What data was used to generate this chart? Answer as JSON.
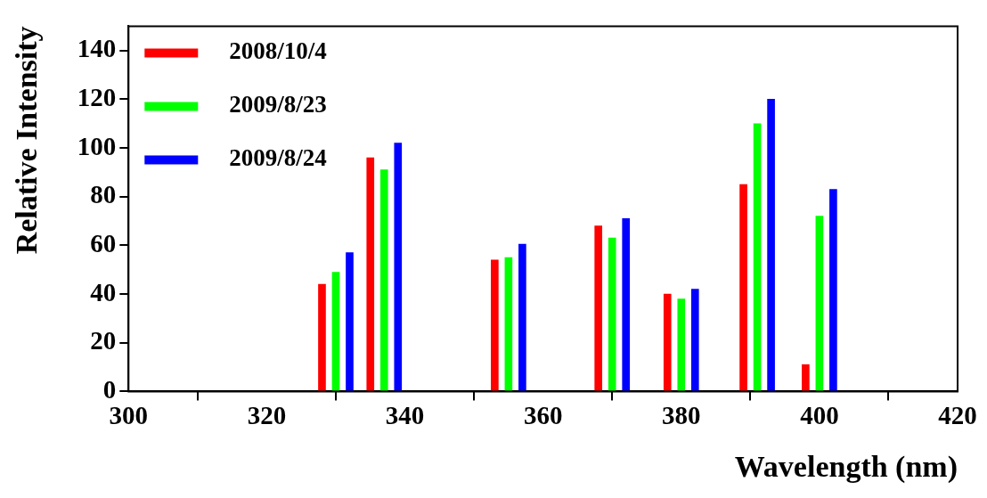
{
  "chart_data": {
    "type": "bar",
    "xlabel": "Wavelength (nm)",
    "ylabel": "Relative Intensity",
    "xlim": [
      300,
      420
    ],
    "xticks": [
      300,
      320,
      340,
      360,
      380,
      400,
      420
    ],
    "ylim": [
      0,
      150
    ],
    "yticks": [
      0,
      20,
      40,
      60,
      80,
      100,
      120,
      140
    ],
    "grid": false,
    "legend": "top left",
    "series": [
      {
        "name": "2008/10/4",
        "color": "#ff0000",
        "x": [
          328,
          335,
          353,
          368,
          378,
          389,
          398
        ],
        "values": [
          44,
          96,
          54,
          68,
          40,
          85,
          11
        ]
      },
      {
        "name": "2009/8/23",
        "color": "#00ff00",
        "x": [
          330,
          337,
          355,
          370,
          380,
          391,
          400
        ],
        "values": [
          49,
          91,
          55,
          63,
          38,
          110,
          72
        ]
      },
      {
        "name": "2009/8/24",
        "color": "#0000ff",
        "x": [
          332,
          339,
          357,
          372,
          382,
          393,
          402
        ],
        "values": [
          57,
          102,
          60.5,
          71,
          42,
          120,
          83
        ]
      }
    ]
  }
}
